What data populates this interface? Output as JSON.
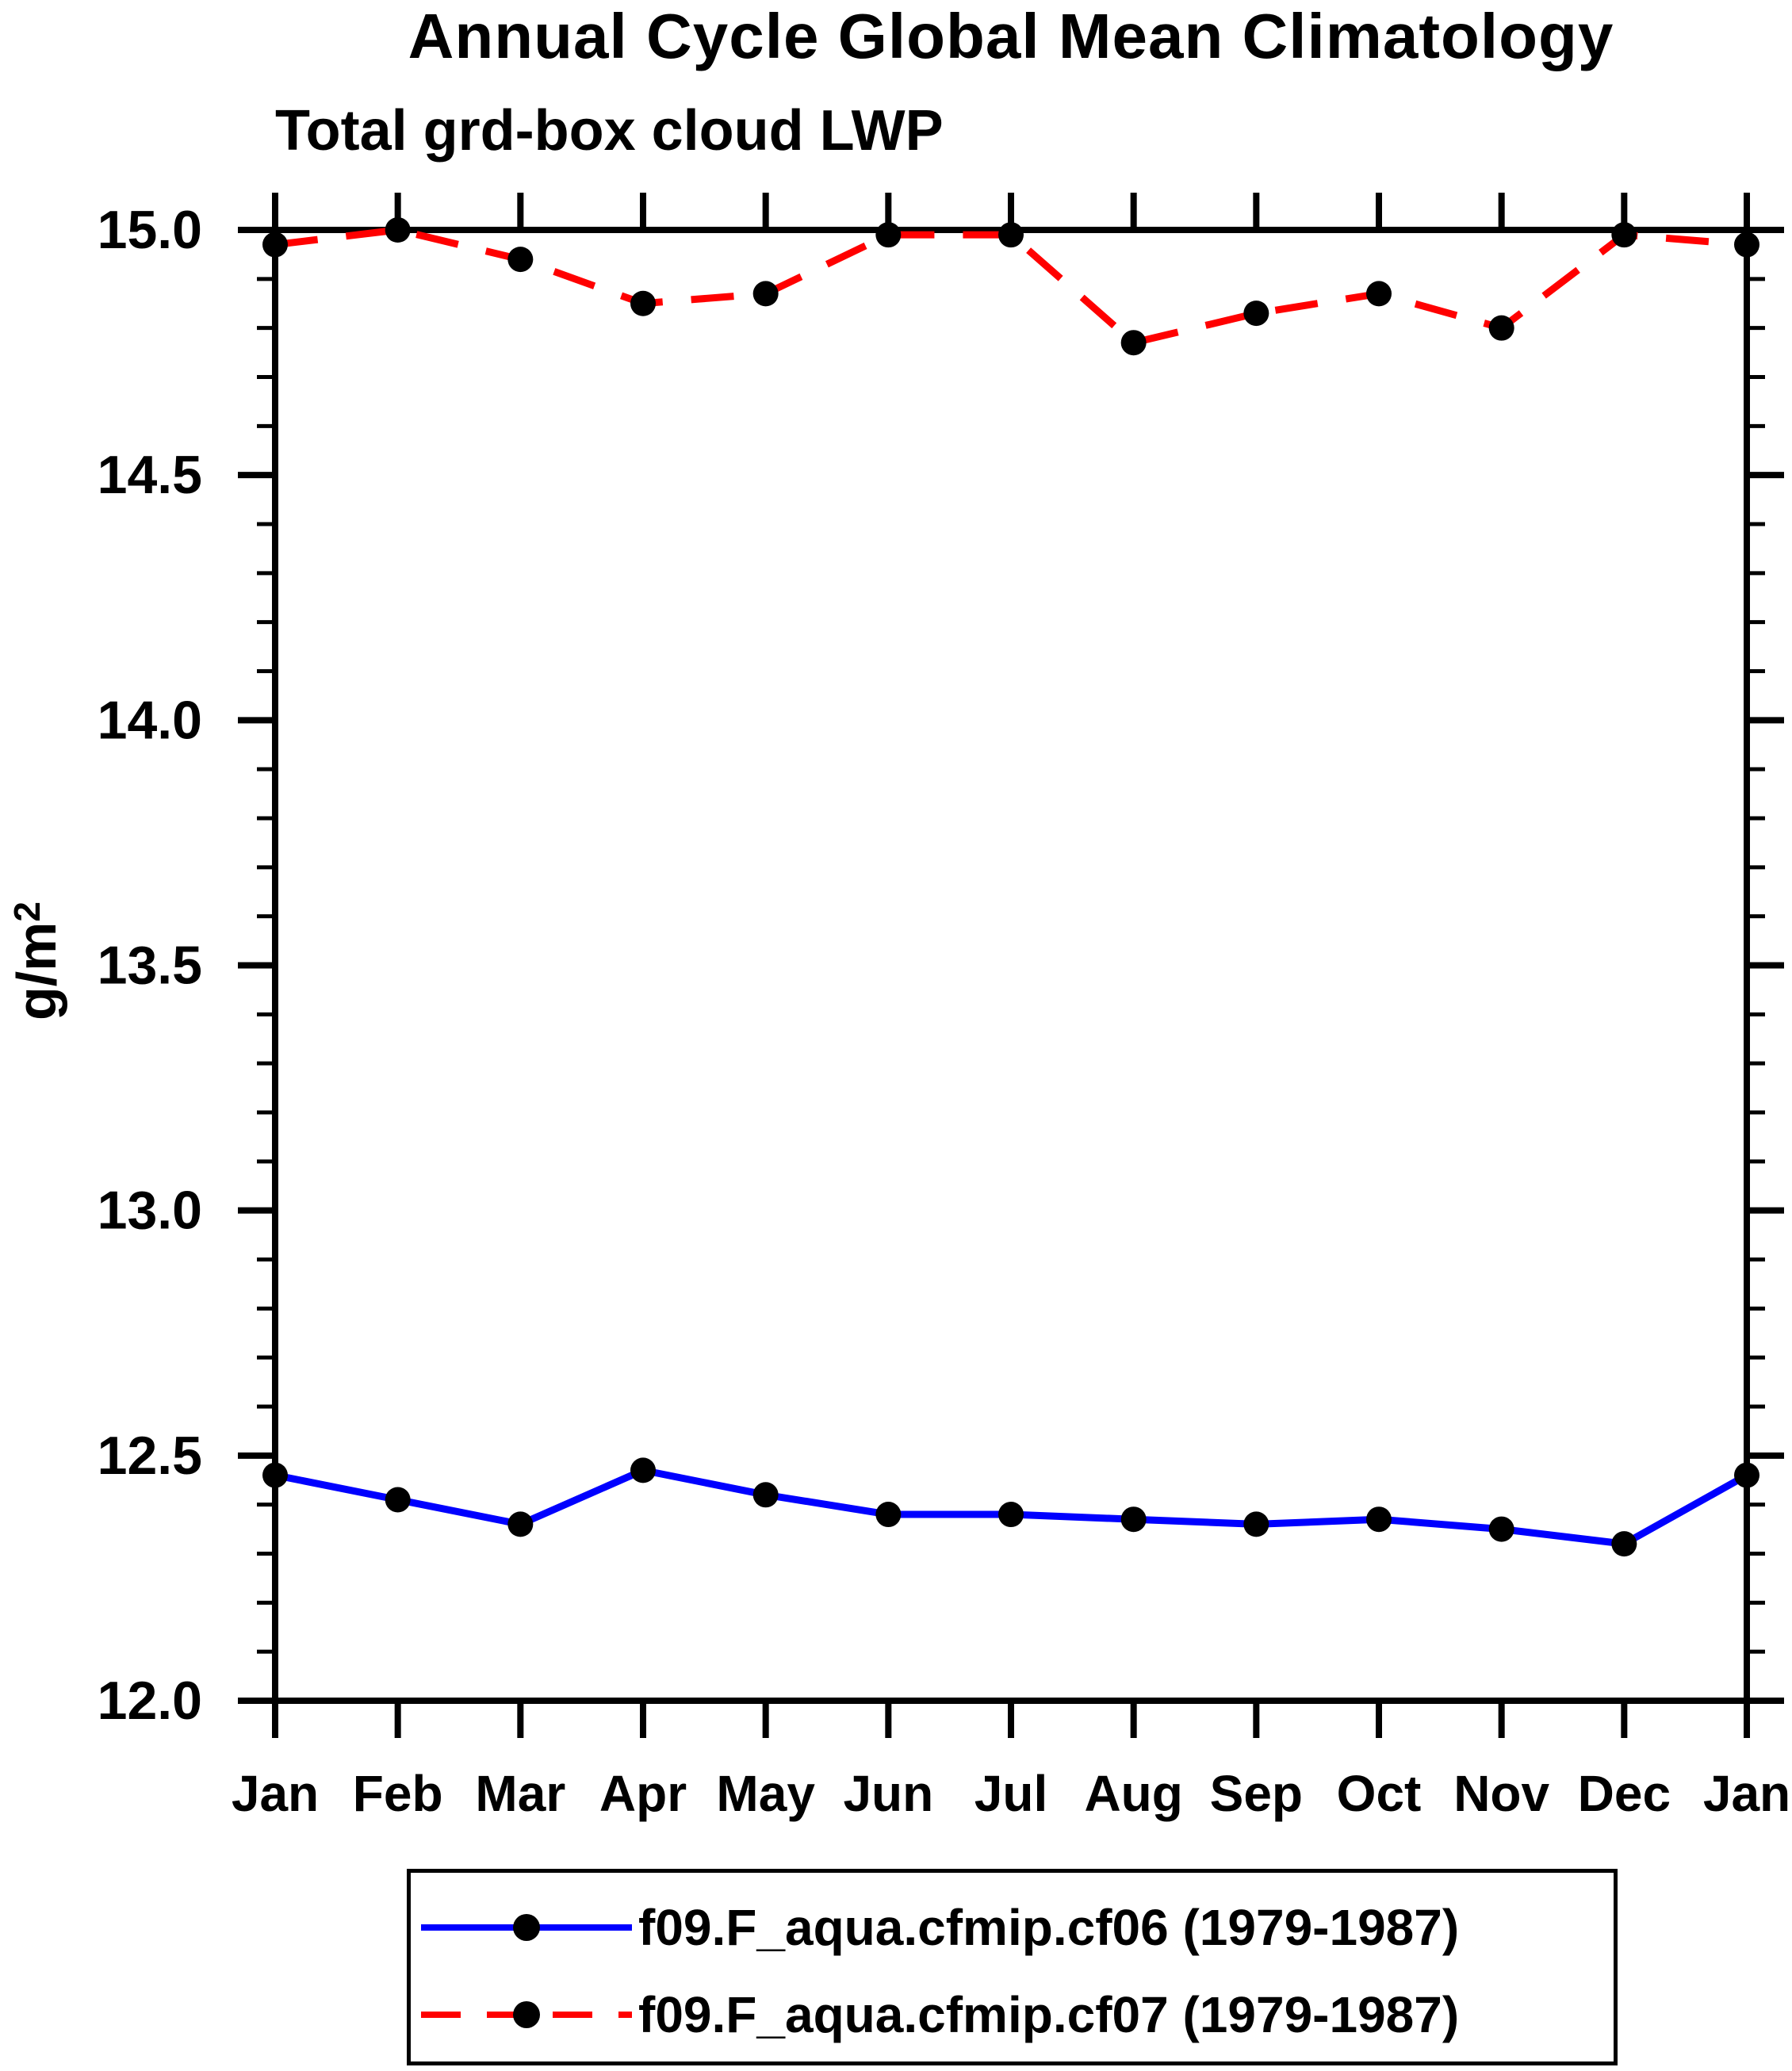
{
  "colors": {
    "axis": "#000000",
    "marker": "#000000",
    "series_blue": "#0000ff",
    "series_red": "#ff0000",
    "background": "#ffffff"
  },
  "chart_data": {
    "type": "line",
    "title": "Annual Cycle Global Mean Climatology",
    "subtitle": "Total grd-box cloud LWP",
    "ylabel": "g/m",
    "ylabel_superscript": "2",
    "xlabel": "",
    "categories": [
      "Jan",
      "Feb",
      "Mar",
      "Apr",
      "May",
      "Jun",
      "Jul",
      "Aug",
      "Sep",
      "Oct",
      "Nov",
      "Dec",
      "Jan"
    ],
    "ylim": [
      12.0,
      15.0
    ],
    "ytick_major": 0.5,
    "ytick_minor": 0.1,
    "ytick_labels": [
      "12.0",
      "12.5",
      "13.0",
      "13.5",
      "14.0",
      "14.5",
      "15.0"
    ],
    "grid": false,
    "legend_position": "bottom",
    "series": [
      {
        "name": "f09.F_aqua.cfmip.cf06 (1979-1987)",
        "color": "#0000ff",
        "line_style": "solid",
        "marker": "circle",
        "marker_color": "#000000",
        "values": [
          12.46,
          12.41,
          12.36,
          12.47,
          12.42,
          12.38,
          12.38,
          12.37,
          12.36,
          12.37,
          12.35,
          12.32,
          12.46
        ]
      },
      {
        "name": "f09.F_aqua.cfmip.cf07 (1979-1987)",
        "color": "#ff0000",
        "line_style": "dashed",
        "marker": "circle",
        "marker_color": "#000000",
        "values": [
          14.97,
          15.0,
          14.94,
          14.85,
          14.87,
          14.99,
          14.99,
          14.77,
          14.83,
          14.87,
          14.8,
          14.99,
          14.97
        ]
      }
    ]
  }
}
